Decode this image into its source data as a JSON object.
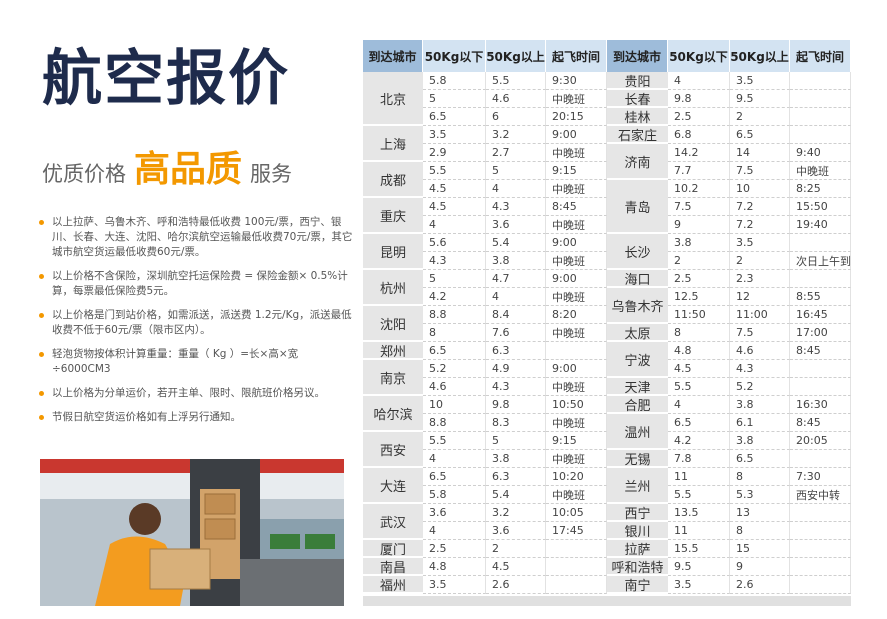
{
  "header": {
    "title": "航空报价",
    "subtitle_left": "优质价格",
    "subtitle_highlight": "高品质",
    "subtitle_right": "服务"
  },
  "notes": [
    "以上拉萨、乌鲁木齐、呼和浩特最低收费 100元/票，西宁、银川、长春、大连、沈阳、哈尔滨航空运输最低收费70元/票，其它城市航空货运最低收费60元/票。",
    "以上价格不含保险，深圳航空托运保险费 = 保险金额× 0.5%计算，每票最低保险费5元。",
    "以上价格是门到站价格，如需派送，派送费 1.2元/Kg，派送最低收费不低于60元/票（限市区内）。",
    "轻泡货物按体积计算重量：重量（ Kg ）=长×高×宽÷6000CM3",
    "以上价格为分单运价，若开主单、限时、限航班价格另议。",
    "节假日航空货运价格如有上浮另行通知。"
  ],
  "table": {
    "left": {
      "headers": [
        "到达城市",
        "50Kg以下",
        "50Kg以上",
        "起飞时间"
      ],
      "groups": [
        {
          "city": "北京",
          "rows": [
            [
              "5.8",
              "5.5",
              "9:30"
            ],
            [
              "5",
              "4.6",
              "中晚班"
            ],
            [
              "6.5",
              "6",
              "20:15"
            ]
          ]
        },
        {
          "city": "上海",
          "rows": [
            [
              "3.5",
              "3.2",
              "9:00"
            ],
            [
              "2.9",
              "2.7",
              "中晚班"
            ]
          ]
        },
        {
          "city": "成都",
          "rows": [
            [
              "5.5",
              "5",
              "9:15"
            ],
            [
              "4.5",
              "4",
              "中晚班"
            ]
          ]
        },
        {
          "city": "重庆",
          "rows": [
            [
              "4.5",
              "4.3",
              "8:45"
            ],
            [
              "4",
              "3.6",
              "中晚班"
            ]
          ]
        },
        {
          "city": "昆明",
          "rows": [
            [
              "5.6",
              "5.4",
              "9:00"
            ],
            [
              "4.3",
              "3.8",
              "中晚班"
            ]
          ]
        },
        {
          "city": "杭州",
          "rows": [
            [
              "5",
              "4.7",
              "9:00"
            ],
            [
              "4.2",
              "4",
              "中晚班"
            ]
          ]
        },
        {
          "city": "沈阳",
          "rows": [
            [
              "8.8",
              "8.4",
              "8:20"
            ],
            [
              "8",
              "7.6",
              "中晚班"
            ]
          ]
        },
        {
          "city": "郑州",
          "rows": [
            [
              "6.5",
              "6.3"
            ]
          ]
        },
        {
          "city": "南京",
          "rows": [
            [
              "5.2",
              "4.9",
              "9:00"
            ],
            [
              "4.6",
              "4.3",
              "中晚班"
            ]
          ]
        },
        {
          "city": "哈尔滨",
          "rows": [
            [
              "10",
              "9.8",
              "10:50"
            ],
            [
              "8.8",
              "8.3",
              "中晚班"
            ]
          ]
        },
        {
          "city": "西安",
          "rows": [
            [
              "5.5",
              "5",
              "9:15"
            ],
            [
              "4",
              "3.8",
              "中晚班"
            ]
          ]
        },
        {
          "city": "大连",
          "rows": [
            [
              "6.5",
              "6.3",
              "10:20"
            ],
            [
              "5.8",
              "5.4",
              "中晚班"
            ]
          ]
        },
        {
          "city": "武汉",
          "rows": [
            [
              "3.6",
              "3.2",
              "10:05"
            ],
            [
              "4",
              "3.6",
              "17:45"
            ]
          ]
        },
        {
          "city": "厦门",
          "rows": [
            [
              "2.5",
              "2"
            ]
          ]
        },
        {
          "city": "南昌",
          "rows": [
            [
              "4.8",
              "4.5"
            ]
          ]
        },
        {
          "city": "福州",
          "rows": [
            [
              "3.5",
              "2.6"
            ]
          ]
        }
      ]
    },
    "right": {
      "headers": [
        "到达城市",
        "50Kg以下",
        "50Kg以上",
        "起飞时间"
      ],
      "groups": [
        {
          "city": "贵阳",
          "rows": [
            [
              "4",
              "3.5"
            ]
          ]
        },
        {
          "city": "长春",
          "rows": [
            [
              "9.8",
              "9.5"
            ]
          ]
        },
        {
          "city": "桂林",
          "rows": [
            [
              "2.5",
              "2"
            ]
          ]
        },
        {
          "city": "石家庄",
          "rows": [
            [
              "6.8",
              "6.5"
            ]
          ]
        },
        {
          "city": "济南",
          "rows": [
            [
              "14.2",
              "14",
              "9:40"
            ],
            [
              "7.7",
              "7.5",
              "中晚班"
            ]
          ]
        },
        {
          "city": "青岛",
          "rows": [
            [
              "10.2",
              "10",
              "8:25"
            ],
            [
              "7.5",
              "7.2",
              "15:50"
            ],
            [
              "9",
              "7.2",
              "19:40"
            ]
          ]
        },
        {
          "city": "长沙",
          "rows": [
            [
              "3.8",
              "3.5"
            ],
            [
              "2",
              "2",
              "次日上午到"
            ]
          ]
        },
        {
          "city": "海口",
          "rows": [
            [
              "2.5",
              "2.3"
            ]
          ]
        },
        {
          "city": "乌鲁木齐",
          "rows": [
            [
              "12.5",
              "12",
              "8:55"
            ],
            [
              "11:50",
              "11:00",
              "16:45"
            ]
          ]
        },
        {
          "city": "太原",
          "rows": [
            [
              "8",
              "7.5",
              "17:00"
            ]
          ]
        },
        {
          "city": "宁波",
          "rows": [
            [
              "4.8",
              "4.6",
              "8:45"
            ],
            [
              "4.5",
              "4.3"
            ]
          ]
        },
        {
          "city": "天津",
          "rows": [
            [
              "5.5",
              "5.2"
            ]
          ]
        },
        {
          "city": "合肥",
          "rows": [
            [
              "4",
              "3.8",
              "16:30"
            ]
          ]
        },
        {
          "city": "温州",
          "rows": [
            [
              "6.5",
              "6.1",
              "8:45"
            ],
            [
              "4.2",
              "3.8",
              "20:05"
            ]
          ]
        },
        {
          "city": "无锡",
          "rows": [
            [
              "7.8",
              "6.5"
            ]
          ]
        },
        {
          "city": "兰州",
          "rows": [
            [
              "11",
              "8",
              "7:30"
            ],
            [
              "5.5",
              "5.3",
              "西安中转"
            ]
          ]
        },
        {
          "city": "西宁",
          "rows": [
            [
              "13.5",
              "13"
            ]
          ]
        },
        {
          "city": "银川",
          "rows": [
            [
              "11",
              "8"
            ]
          ]
        },
        {
          "city": "拉萨",
          "rows": [
            [
              "15.5",
              "15"
            ]
          ]
        },
        {
          "city": "呼和浩特",
          "rows": [
            [
              "9.5",
              "9"
            ]
          ]
        },
        {
          "city": "南宁",
          "rows": [
            [
              "3.5",
              "2.6"
            ]
          ]
        }
      ]
    }
  }
}
